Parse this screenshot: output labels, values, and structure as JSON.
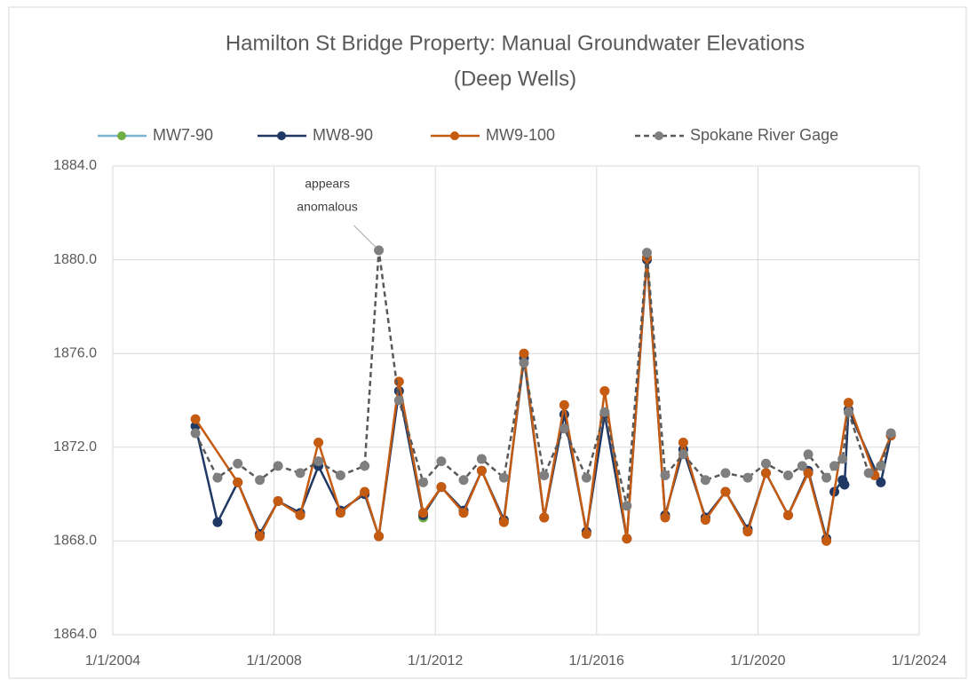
{
  "chart_data": {
    "type": "line",
    "title": [
      "Hamilton St Bridge Property:  Manual Groundwater Elevations",
      "(Deep Wells)"
    ],
    "annotation": [
      "appears",
      "anomalous"
    ],
    "annotation_point": {
      "x": "8/7/2010",
      "y": 1880.4
    },
    "xlim": [
      "1/1/2004",
      "1/1/2024"
    ],
    "xticks": [
      "1/1/2004",
      "1/1/2008",
      "1/1/2012",
      "1/1/2016",
      "1/1/2020",
      "1/1/2024"
    ],
    "ylim": [
      1864,
      1884
    ],
    "yticks": [
      {
        "value": 1864,
        "label": "1864.0"
      },
      {
        "value": 1868,
        "label": "1868.0"
      },
      {
        "value": 1872,
        "label": "1872.0"
      },
      {
        "value": 1876,
        "label": "1876.0"
      },
      {
        "value": 1880,
        "label": "1880.0"
      },
      {
        "value": 1884,
        "label": "1884.0"
      }
    ],
    "grid": true,
    "legend": "top",
    "series": [
      {
        "name": "MW7-90",
        "color": "#7fb3d5",
        "marker_color": "#70ad47",
        "dash": false,
        "x": [
          "9/13/2011"
        ],
        "values": [
          1869.0
        ]
      },
      {
        "name": "MW8-90",
        "color": "#203864",
        "marker_color": "#203864",
        "dash": false,
        "x": [
          "1/19/2006",
          "8/7/2006",
          "2/6/2007",
          "8/25/2007",
          "2/6/2008",
          "8/25/2008",
          "2/6/2009",
          "8/25/2009",
          "4/1/2010",
          "8/7/2010",
          "2/6/2011",
          "9/13/2011",
          "2/24/2012",
          "9/13/2012",
          "2/24/2013",
          "9/13/2013",
          "3/14/2014",
          "9/13/2014",
          "3/14/2015",
          "10/1/2015",
          "3/14/2016",
          "10/1/2016",
          "4/1/2017",
          "9/13/2017",
          "2/24/2018",
          "9/13/2018",
          "3/14/2019",
          "10/1/2019",
          "3/14/2020",
          "10/1/2020",
          "4/1/2021",
          "9/13/2021",
          "11/24/2021",
          "2/6/2022",
          "2/24/2022",
          "4/1/2022",
          "1/19/2023",
          "4/20/2023"
        ],
        "values": [
          1872.9,
          1868.8,
          1870.5,
          1868.3,
          1869.7,
          1869.2,
          1871.2,
          1869.3,
          1870.0,
          1868.2,
          1874.4,
          1869.1,
          1870.3,
          1869.3,
          1871.0,
          1868.9,
          1875.8,
          1869.0,
          1873.4,
          1868.4,
          1873.4,
          1868.1,
          1880.0,
          1869.1,
          1871.9,
          1869.0,
          1870.1,
          1868.5,
          1870.9,
          1869.1,
          1871.0,
          1868.1,
          1870.1,
          1870.6,
          1870.4,
          1873.6,
          1870.5,
          1872.5
        ]
      },
      {
        "name": "MW9-100",
        "color": "#c55a11",
        "marker_color": "#c55a11",
        "dash": false,
        "x": [
          "1/19/2006",
          "2/6/2007",
          "8/25/2007",
          "2/6/2008",
          "8/25/2008",
          "2/6/2009",
          "8/25/2009",
          "4/1/2010",
          "8/7/2010",
          "2/6/2011",
          "9/13/2011",
          "2/24/2012",
          "9/13/2012",
          "2/24/2013",
          "9/13/2013",
          "3/14/2014",
          "9/13/2014",
          "3/14/2015",
          "10/1/2015",
          "3/14/2016",
          "10/1/2016",
          "4/1/2017",
          "9/13/2017",
          "2/24/2018",
          "9/13/2018",
          "3/14/2019",
          "10/1/2019",
          "3/14/2020",
          "10/1/2020",
          "4/1/2021",
          "9/13/2021",
          "4/1/2022",
          "11/24/2022",
          "4/20/2023"
        ],
        "values": [
          1873.2,
          1870.5,
          1868.2,
          1869.7,
          1869.1,
          1872.2,
          1869.2,
          1870.1,
          1868.2,
          1874.8,
          1869.2,
          1870.3,
          1869.2,
          1871.0,
          1868.8,
          1876.0,
          1869.0,
          1873.8,
          1868.3,
          1874.4,
          1868.1,
          1880.1,
          1869.0,
          1872.2,
          1868.9,
          1870.1,
          1868.4,
          1870.9,
          1869.1,
          1870.9,
          1868.0,
          1873.9,
          1870.8,
          1872.5
        ]
      },
      {
        "name": "Spokane River Gage",
        "color": "#595959",
        "marker_color": "#7f7f7f",
        "dash": true,
        "x": [
          "1/19/2006",
          "8/7/2006",
          "2/6/2007",
          "8/25/2007",
          "2/6/2008",
          "8/25/2008",
          "2/6/2009",
          "8/25/2009",
          "4/1/2010",
          "8/7/2010",
          "2/6/2011",
          "9/13/2011",
          "2/24/2012",
          "9/13/2012",
          "2/24/2013",
          "9/13/2013",
          "3/14/2014",
          "9/13/2014",
          "3/14/2015",
          "10/1/2015",
          "3/14/2016",
          "10/1/2016",
          "4/1/2017",
          "9/13/2017",
          "2/24/2018",
          "9/13/2018",
          "3/14/2019",
          "10/1/2019",
          "3/14/2020",
          "10/1/2020",
          "2/6/2021",
          "4/1/2021",
          "9/13/2021",
          "11/24/2021",
          "2/6/2022",
          "4/1/2022",
          "10/1/2022",
          "1/19/2023",
          "4/20/2023"
        ],
        "values": [
          1872.6,
          1870.7,
          1871.3,
          1870.6,
          1871.2,
          1870.9,
          1871.4,
          1870.8,
          1871.2,
          1880.4,
          1874.0,
          1870.5,
          1871.4,
          1870.6,
          1871.5,
          1870.7,
          1875.6,
          1870.8,
          1872.8,
          1870.7,
          1873.5,
          1869.5,
          1880.3,
          1870.8,
          1871.7,
          1870.6,
          1870.9,
          1870.7,
          1871.3,
          1870.8,
          1871.2,
          1871.7,
          1870.7,
          1871.2,
          1871.5,
          1873.5,
          1870.9,
          1871.2,
          1872.6
        ]
      }
    ]
  }
}
